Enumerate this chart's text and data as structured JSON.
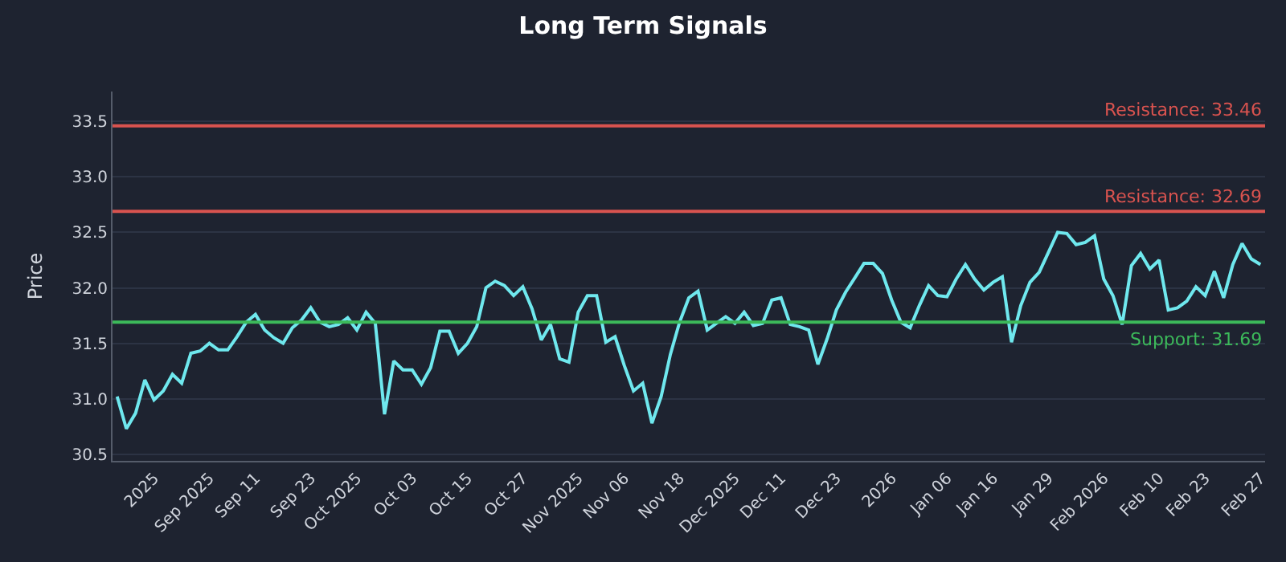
{
  "chart_data": {
    "type": "line",
    "title": "Long Term Signals",
    "ylabel": "Price",
    "categories": [
      null,
      null,
      null,
      null,
      "2025",
      null,
      null,
      null,
      null,
      null,
      "Sep 2025",
      null,
      null,
      null,
      null,
      "Sep 11",
      null,
      null,
      null,
      null,
      null,
      "Sep 23",
      null,
      null,
      null,
      null,
      "Oct 2025",
      null,
      null,
      null,
      null,
      null,
      "Oct 03",
      null,
      null,
      null,
      null,
      null,
      "Oct 15",
      null,
      null,
      null,
      null,
      null,
      "Oct 27",
      null,
      null,
      null,
      null,
      null,
      "Nov 2025",
      null,
      null,
      null,
      null,
      "Nov 06",
      null,
      null,
      null,
      null,
      null,
      "Nov 18",
      null,
      null,
      null,
      null,
      null,
      "Dec 2025",
      null,
      null,
      null,
      null,
      "Dec 11",
      null,
      null,
      null,
      null,
      null,
      "Dec 23",
      null,
      null,
      null,
      null,
      null,
      "2026",
      null,
      null,
      null,
      null,
      null,
      "Jan 06",
      null,
      null,
      null,
      null,
      "Jan 16",
      null,
      null,
      null,
      null,
      null,
      "Jan 29",
      null,
      null,
      null,
      null,
      null,
      "Feb 2026",
      null,
      null,
      null,
      null,
      null,
      "Feb 10",
      null,
      null,
      null,
      null,
      "Feb 23",
      null,
      null,
      null,
      null,
      null,
      "Feb 27"
    ],
    "series": [
      {
        "color": "#6fe8ee",
        "values": [
          31.02,
          30.73,
          30.87,
          31.17,
          30.99,
          31.07,
          31.22,
          31.14,
          31.41,
          31.43,
          31.5,
          31.44,
          31.44,
          31.56,
          31.69,
          31.76,
          31.62,
          31.55,
          31.5,
          31.64,
          31.71,
          31.82,
          31.69,
          31.65,
          31.67,
          31.73,
          31.62,
          31.78,
          31.68,
          30.86,
          31.34,
          31.26,
          31.26,
          31.13,
          31.28,
          31.61,
          31.61,
          31.41,
          31.5,
          31.65,
          32.0,
          32.06,
          32.02,
          31.93,
          32.01,
          31.81,
          31.53,
          31.67,
          31.36,
          31.33,
          31.78,
          31.93,
          31.93,
          31.51,
          31.56,
          31.3,
          31.07,
          31.14,
          30.78,
          31.02,
          31.4,
          31.69,
          31.91,
          31.97,
          31.62,
          31.68,
          31.74,
          31.68,
          31.78,
          31.66,
          31.68,
          31.89,
          31.91,
          31.67,
          31.65,
          31.62,
          31.31,
          31.54,
          31.8,
          31.96,
          32.09,
          32.22,
          32.22,
          32.13,
          31.89,
          31.69,
          31.64,
          31.84,
          32.02,
          31.93,
          31.92,
          32.08,
          32.21,
          32.08,
          31.98,
          32.05,
          32.1,
          31.51,
          31.84,
          32.05,
          32.14,
          32.32,
          32.5,
          32.49,
          32.39,
          32.41,
          32.47,
          32.08,
          31.93,
          31.67,
          32.2,
          32.31,
          32.17,
          32.25,
          31.8,
          31.82,
          31.88,
          32.01,
          31.93,
          32.15,
          31.91,
          32.21,
          32.4,
          32.26,
          32.21
        ]
      }
    ],
    "ylim": [
      30.44,
      33.77
    ],
    "yticks": [
      30.5,
      {
        "value": 31,
        "label": "31.0"
      },
      31.5,
      {
        "value": 32,
        "label": "32.0"
      },
      32.5,
      {
        "value": 33,
        "label": "33.0"
      },
      33.5
    ],
    "ref_lines": [
      {
        "axis": "y",
        "value": 33.46,
        "label": "Resistance: 33.46",
        "color": "#d9534f"
      },
      {
        "axis": "y",
        "value": 32.69,
        "label": "Resistance: 32.69",
        "color": "#d9534f"
      },
      {
        "axis": "y",
        "value": 31.69,
        "label": "Support: 31.69",
        "color": "#3cb95a"
      }
    ],
    "grid": "y",
    "marker": "none",
    "line_style": "solid"
  }
}
